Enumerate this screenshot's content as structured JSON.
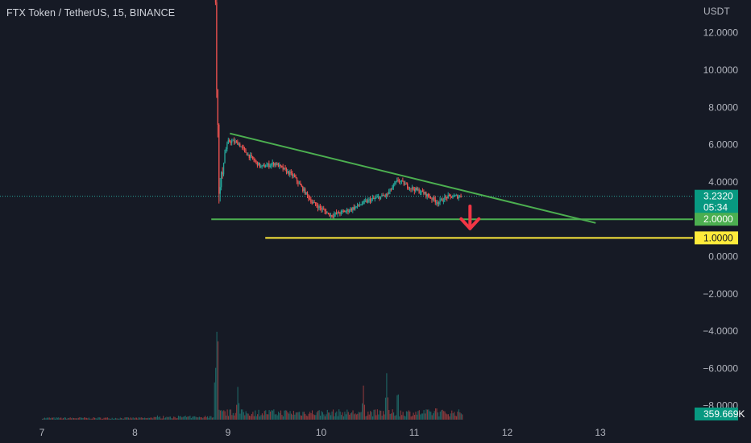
{
  "header": {
    "title": "FTX Token / TetherUS, 15, BINANCE"
  },
  "price_axis": {
    "unit": "USDT",
    "ticks": [
      "12.0000",
      "10.0000",
      "8.0000",
      "6.0000",
      "4.0000",
      "0.0000",
      "−2.0000",
      "−4.0000",
      "−6.0000",
      "−8.0000"
    ]
  },
  "price_tags": {
    "current": {
      "value": "3.2320",
      "countdown": "05:34",
      "color": "#089981"
    },
    "support_green": {
      "value": "2.0000",
      "color": "#4caf50"
    },
    "support_yellow": {
      "value": "1.0000",
      "color": "#ffeb3b"
    },
    "volume": {
      "value": "359.669K",
      "color": "#089981"
    }
  },
  "colors": {
    "background": "#161a25",
    "up": "#26a69a",
    "down": "#ef5350",
    "trendline": "#4caf50",
    "yellow_line": "#ffeb3b",
    "arrow": "#f23645"
  },
  "chart_data": {
    "type": "candlestick",
    "x_axis": {
      "ticks": [
        "7",
        "8",
        "9",
        "10",
        "11",
        "12",
        "13"
      ]
    },
    "y_axis": {
      "ylim": [
        -8.6,
        13.9
      ],
      "ticks": [
        12,
        10,
        8,
        6,
        4,
        0,
        -2,
        -4,
        -6,
        -8
      ]
    },
    "price_path": [
      {
        "day": 8.86,
        "price": 13.8
      },
      {
        "day": 8.87,
        "price": 9.8
      },
      {
        "day": 8.88,
        "price": 8.2
      },
      {
        "day": 8.9,
        "price": 3.1
      },
      {
        "day": 8.95,
        "price": 5.4
      },
      {
        "day": 9.0,
        "price": 6.2
      },
      {
        "day": 9.1,
        "price": 6.1
      },
      {
        "day": 9.2,
        "price": 5.5
      },
      {
        "day": 9.35,
        "price": 4.8
      },
      {
        "day": 9.5,
        "price": 5.0
      },
      {
        "day": 9.7,
        "price": 4.3
      },
      {
        "day": 9.9,
        "price": 2.9
      },
      {
        "day": 10.1,
        "price": 2.2
      },
      {
        "day": 10.3,
        "price": 2.5
      },
      {
        "day": 10.5,
        "price": 3.0
      },
      {
        "day": 10.7,
        "price": 3.3
      },
      {
        "day": 10.82,
        "price": 4.1
      },
      {
        "day": 10.95,
        "price": 3.7
      },
      {
        "day": 11.1,
        "price": 3.4
      },
      {
        "day": 11.25,
        "price": 2.9
      },
      {
        "day": 11.35,
        "price": 3.2
      },
      {
        "day": 11.5,
        "price": 3.23
      }
    ],
    "volume_spikes": [
      {
        "day": 8.88,
        "level": 1.0
      },
      {
        "day": 8.86,
        "level": 0.6
      },
      {
        "day": 9.1,
        "level": 0.35
      },
      {
        "day": 10.45,
        "level": 0.35
      },
      {
        "day": 10.7,
        "level": 0.45
      },
      {
        "day": 10.82,
        "level": 0.3
      },
      {
        "day": 11.23,
        "level": 0.15
      }
    ],
    "current_price": 3.232,
    "annotations": {
      "descending_trendline": [
        {
          "day": 9.02,
          "price": 6.6
        },
        {
          "day": 12.95,
          "price": 1.8
        }
      ],
      "support_line_2": {
        "price": 2.0,
        "from_day": 8.82
      },
      "support_line_1": {
        "price": 1.0,
        "from_day": 9.4
      },
      "down_arrow": {
        "day": 11.6,
        "from_price": 2.7,
        "to_price": 1.5
      }
    },
    "grid": false,
    "legend": "none"
  }
}
